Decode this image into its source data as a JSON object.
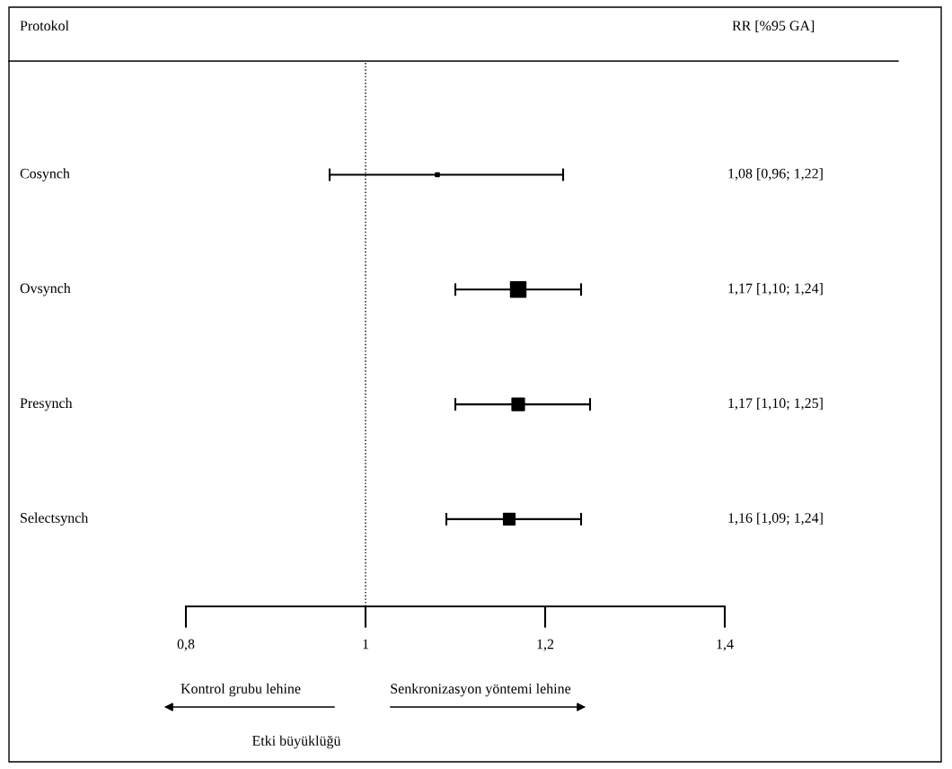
{
  "chart_data": {
    "type": "bubble",
    "orientation": "horizontal",
    "ylabel": "Protokol",
    "categories": [
      "Cosynch",
      "Ovsynch",
      "Presynch",
      "Selectsynch"
    ],
    "values": [
      1.08,
      1.17,
      1.17,
      1.16
    ],
    "errors": [
      [
        0.96,
        1.22
      ],
      [
        1.1,
        1.24
      ],
      [
        1.1,
        1.25
      ],
      [
        1.09,
        1.24
      ]
    ],
    "sizes": [
      0.06,
      1,
      0.66,
      0.56
    ],
    "color": "#000000",
    "marker": "square",
    "value_labels": [
      "1,08 [0,96; 1,22]",
      "1,17 [1,10; 1,24]",
      "1,17 [1,10; 1,25]",
      "1,16 [1,09; 1,24]"
    ],
    "xlim": [
      0.8,
      1.4
    ],
    "xticks": [
      {
        "value": 0.8,
        "label": "0,8"
      },
      1,
      {
        "value": 1.2,
        "label": "1,2"
      },
      {
        "value": 1.4,
        "label": "1,4"
      }
    ],
    "ref_lines": [
      {
        "axis": "x",
        "value": 1,
        "line_style": "dotted",
        "color": "#000000"
      }
    ],
    "annotations": [
      "RR [%95 GA]",
      "Kontrol grubu lehine",
      "Senkronizasyon yöntemi lehine",
      "Etki büyüklüğü"
    ],
    "grid": false
  }
}
